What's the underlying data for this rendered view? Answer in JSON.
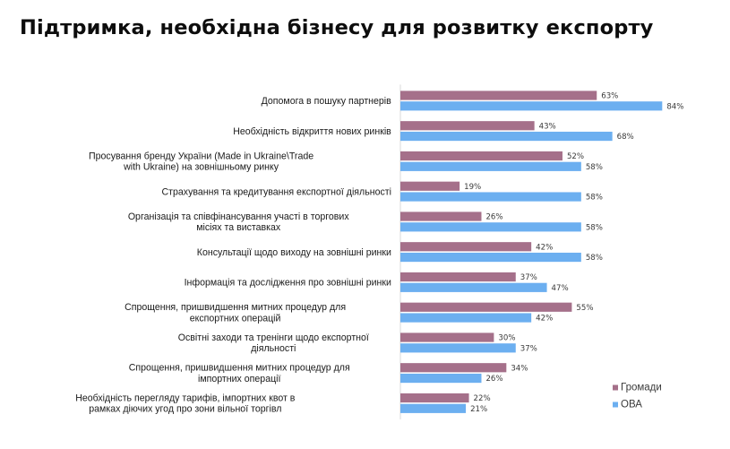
{
  "chart_data": {
    "type": "bar",
    "orientation": "horizontal",
    "title": "Підтримка, необхідна бізнесу для розвитку експорту",
    "categories": [
      [
        "Допомога в пошуку партнерів"
      ],
      [
        "Необхідність відкриття нових ринків"
      ],
      [
        "Просування бренду України (Made in Ukraine\\Trade",
        "with Ukraine) на зовнішньому ринку"
      ],
      [
        "Страхування та кредитування експортної діяльності"
      ],
      [
        "Організація та співфінансування  участі в торгових",
        "місіях та виставках"
      ],
      [
        "Консультації щодо виходу на зовнішні ринки"
      ],
      [
        "Інформація та дослідження про зовнішні ринки"
      ],
      [
        "Спрощення, пришвидшення митних процедур для",
        "експортних операцій"
      ],
      [
        "Освітні заходи та тренінги щодо експортної",
        "діяльності"
      ],
      [
        "Спрощення, пришвидшення митних процедур для",
        "імпортних операції"
      ],
      [
        "Необхідність перегляду тарифів, імпортних квот в",
        "рамках діючих угод про зони вільної торгівл"
      ]
    ],
    "series": [
      {
        "name": "Громади",
        "color": "#a5708a",
        "values": [
          63,
          43,
          52,
          19,
          26,
          42,
          37,
          55,
          30,
          34,
          22
        ],
        "labels": [
          "63%",
          "43%",
          "52%",
          "19%",
          "26%",
          "42%",
          "37%",
          "55%",
          "30%",
          "34%",
          "22%"
        ]
      },
      {
        "name": "ОВА",
        "color": "#6caff0",
        "values": [
          84,
          68,
          58,
          58,
          58,
          58,
          47,
          42,
          37,
          26,
          21
        ],
        "labels": [
          "84%",
          "68%",
          "58%",
          "58%",
          "58%",
          "58%",
          "47%",
          "42%",
          "37%",
          "26%",
          "21%"
        ]
      }
    ],
    "xlim": [
      0,
      100
    ],
    "legend_position": "bottom-right",
    "grid": false
  }
}
